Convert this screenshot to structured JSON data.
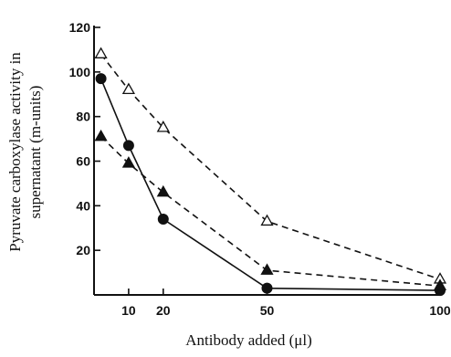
{
  "chart_data": {
    "type": "line",
    "title": "",
    "xlabel": "Antibody added (μl)",
    "ylabel": "Pyruvate carboxylase activity in supernatant (m-units)",
    "ylabel_lines": [
      "Pyruvate carboxylase activity in",
      "supernatant (m-units)"
    ],
    "xlim": [
      0,
      100
    ],
    "ylim": [
      0,
      120
    ],
    "xticks": [
      10,
      20,
      50,
      100
    ],
    "yticks": [
      20,
      40,
      60,
      80,
      100,
      120
    ],
    "grid": false,
    "legend": "none",
    "series": [
      {
        "marker": "open-triangle",
        "line_style": "dashed",
        "color": "#111111",
        "x": [
          2,
          10,
          20,
          50,
          100
        ],
        "y": [
          108,
          92,
          75,
          33,
          7
        ]
      },
      {
        "marker": "filled-circle",
        "line_style": "solid",
        "color": "#111111",
        "x": [
          2,
          10,
          20,
          50,
          100
        ],
        "y": [
          97,
          67,
          34,
          3,
          2
        ]
      },
      {
        "marker": "filled-triangle",
        "line_style": "dashed",
        "color": "#111111",
        "x": [
          2,
          10,
          20,
          50,
          100
        ],
        "y": [
          71,
          59,
          46,
          11,
          4
        ]
      }
    ]
  }
}
